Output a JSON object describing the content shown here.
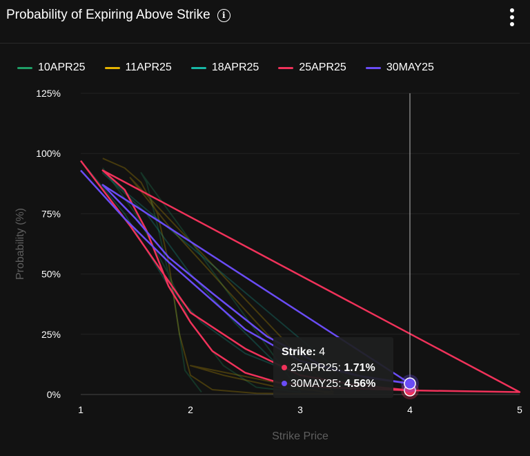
{
  "header": {
    "title": "Probability of Expiring Above Strike",
    "info_icon": "info-icon",
    "menu_icon": "more-vertical-icon"
  },
  "chart_data": {
    "type": "line",
    "title": "Probability of Expiring Above Strike",
    "xlabel": "Strike Price",
    "ylabel": "Probability (%)",
    "xlim": [
      1,
      5
    ],
    "ylim": [
      0,
      125
    ],
    "x_ticks": [
      "1",
      "2",
      "3",
      "4",
      "5"
    ],
    "y_ticks": [
      "0%",
      "25%",
      "50%",
      "75%",
      "100%",
      "125%"
    ],
    "grid": true,
    "legend_position": "top-left",
    "series": [
      {
        "name": "10APR25",
        "color": "#1f9e66",
        "highlighted": false,
        "points": [
          [
            1.2,
            94
          ],
          [
            1.5,
            75
          ],
          [
            1.8,
            50
          ],
          [
            2.0,
            30
          ],
          [
            2.3,
            12
          ],
          [
            2.6,
            3
          ],
          [
            3,
            1
          ],
          [
            1.55,
            92
          ],
          [
            1.6,
            88
          ],
          [
            1.7,
            70
          ],
          [
            1.85,
            40
          ],
          [
            1.95,
            10
          ],
          [
            2.1,
            1
          ]
        ]
      },
      {
        "name": "11APR25",
        "color": "#e5b300",
        "highlighted": false,
        "points": [
          [
            1.2,
            98
          ],
          [
            1.4,
            94
          ],
          [
            1.55,
            88
          ],
          [
            1.7,
            75
          ],
          [
            1.8,
            55
          ],
          [
            1.9,
            25
          ],
          [
            2.0,
            8
          ],
          [
            2.2,
            2
          ],
          [
            2.6,
            0.5
          ],
          [
            3.3,
            0.2
          ],
          [
            2.0,
            12
          ],
          [
            2.3,
            8
          ],
          [
            2.8,
            3
          ],
          [
            3.3,
            1
          ],
          [
            1.45,
            90
          ],
          [
            1.8,
            70
          ],
          [
            2.3,
            45
          ],
          [
            2.7,
            25
          ],
          [
            3.0,
            12
          ]
        ]
      },
      {
        "name": "18APR25",
        "color": "#17b8a6",
        "highlighted": false,
        "points": [
          [
            1,
            97
          ],
          [
            1.4,
            75
          ],
          [
            1.8,
            45
          ],
          [
            2.1,
            30
          ],
          [
            2.5,
            17
          ],
          [
            3,
            8
          ],
          [
            3.5,
            4
          ],
          [
            1.2,
            92
          ],
          [
            1.6,
            75
          ],
          [
            2.0,
            50
          ],
          [
            2.4,
            30
          ],
          [
            2.8,
            12
          ],
          [
            3.2,
            5
          ]
        ]
      },
      {
        "name": "25APR25",
        "color": "#f0325a",
        "highlighted": true,
        "points": [
          [
            1,
            97
          ],
          [
            1.45,
            70
          ],
          [
            2.0,
            34
          ],
          [
            2.5,
            19
          ],
          [
            3,
            8
          ],
          [
            3.5,
            4
          ],
          [
            4,
            1.71
          ],
          [
            5,
            1
          ],
          [
            1.2,
            93
          ],
          [
            1.4,
            85
          ],
          [
            1.6,
            68
          ],
          [
            1.8,
            45
          ],
          [
            2.0,
            30
          ],
          [
            2.2,
            18
          ],
          [
            2.5,
            9
          ],
          [
            2.8,
            5
          ],
          [
            3.2,
            3
          ],
          [
            4,
            1.71
          ]
        ]
      },
      {
        "name": "30MAY25",
        "color": "#6a4cf5",
        "highlighted": true,
        "points": [
          [
            1,
            93
          ],
          [
            1.4,
            73
          ],
          [
            1.8,
            55
          ],
          [
            2.1,
            43
          ],
          [
            2.5,
            27
          ],
          [
            3,
            14
          ],
          [
            3.5,
            8
          ],
          [
            4,
            4.56
          ],
          [
            1.2,
            87
          ],
          [
            1.5,
            73
          ],
          [
            1.8,
            57
          ],
          [
            2.2,
            42
          ],
          [
            2.7,
            24
          ],
          [
            3.2,
            12
          ],
          [
            3.6,
            7
          ],
          [
            4,
            4.56
          ]
        ]
      }
    ]
  },
  "tooltip": {
    "strike_label": "Strike:",
    "strike_value": "4",
    "rows": [
      {
        "series": "25APR25:",
        "value": "1.71%",
        "color": "#f0325a"
      },
      {
        "series": "30MAY25:",
        "value": "4.56%",
        "color": "#6a4cf5"
      }
    ]
  }
}
